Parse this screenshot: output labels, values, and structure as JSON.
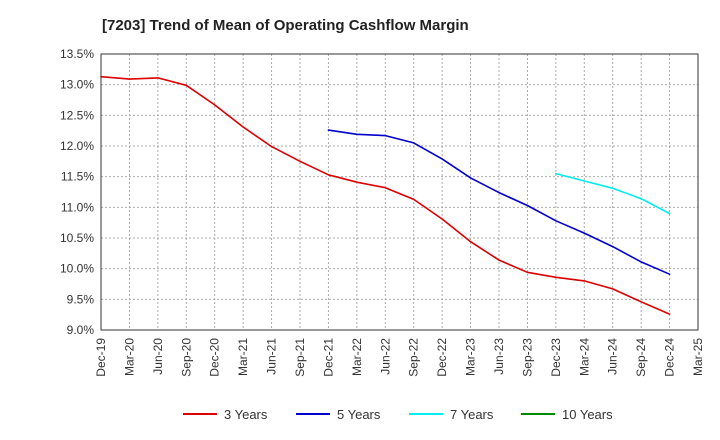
{
  "chart_data": {
    "type": "line",
    "title": "[7203]  Trend of Mean of Operating Cashflow Margin",
    "xlabel": "",
    "ylabel": "",
    "ylim": [
      9.0,
      13.5
    ],
    "grid": true,
    "legend_position": "bottom",
    "x": [
      "Dec-19",
      "Mar-20",
      "Jun-20",
      "Sep-20",
      "Dec-20",
      "Mar-21",
      "Jun-21",
      "Sep-21",
      "Dec-21",
      "Mar-22",
      "Jun-22",
      "Sep-22",
      "Dec-22",
      "Mar-23",
      "Jun-23",
      "Sep-23",
      "Dec-23",
      "Mar-24",
      "Jun-24",
      "Sep-24",
      "Dec-24",
      "Mar-25"
    ],
    "yticks": [
      "9.0%",
      "9.5%",
      "10.0%",
      "10.5%",
      "11.0%",
      "11.5%",
      "12.0%",
      "12.5%",
      "13.0%",
      "13.5%"
    ],
    "series": [
      {
        "name": "3 Years",
        "color": "#dd0000",
        "values": [
          13.13,
          13.09,
          13.11,
          12.99,
          12.67,
          12.31,
          11.99,
          11.75,
          11.53,
          11.41,
          11.32,
          11.13,
          10.81,
          10.44,
          10.14,
          9.94,
          9.86,
          9.8,
          9.67,
          9.46,
          9.26,
          null
        ]
      },
      {
        "name": "5 Years",
        "color": "#0000cc",
        "values": [
          null,
          null,
          null,
          null,
          null,
          null,
          null,
          null,
          12.26,
          12.19,
          12.17,
          12.05,
          11.79,
          11.48,
          11.24,
          11.03,
          10.78,
          10.58,
          10.36,
          10.11,
          9.91,
          null
        ]
      },
      {
        "name": "7 Years",
        "color": "#00eeee",
        "values": [
          null,
          null,
          null,
          null,
          null,
          null,
          null,
          null,
          null,
          null,
          null,
          null,
          null,
          null,
          null,
          null,
          11.55,
          11.43,
          11.31,
          11.14,
          10.9,
          null
        ]
      },
      {
        "name": "10 Years",
        "color": "#008800",
        "values": [
          null,
          null,
          null,
          null,
          null,
          null,
          null,
          null,
          null,
          null,
          null,
          null,
          null,
          null,
          null,
          null,
          null,
          null,
          null,
          null,
          null,
          null
        ]
      }
    ]
  }
}
